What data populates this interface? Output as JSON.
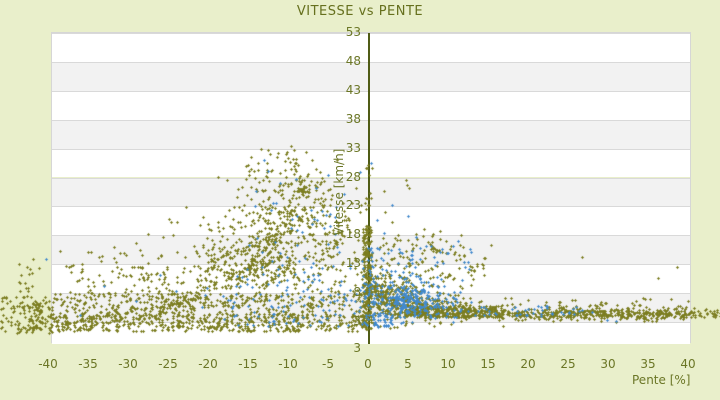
{
  "chart_data": {
    "type": "scatter",
    "title": "VITESSE vs PENTE",
    "xlabel": "Pente [%]",
    "ylabel": "Vitesse [km/h]",
    "xlim": [
      -40,
      40
    ],
    "ylim": [
      3,
      53
    ],
    "xticks": [
      -40,
      -35,
      -30,
      -25,
      -20,
      -15,
      -10,
      -5,
      0,
      5,
      10,
      15,
      20,
      25,
      30,
      35,
      40
    ],
    "yticks": [
      53,
      48,
      43,
      38,
      33,
      28,
      23,
      18,
      13,
      8,
      3
    ],
    "axis_floor_label": "3",
    "grid": "horizontal alternating bands, y-axis drawn at x=0, points not clipped to plot box",
    "legend": null,
    "colors": {
      "background": "#e9efcb",
      "band_light": "#ffffff",
      "band_dark": "#f2f2f2",
      "gridline": "#d9d9d9",
      "axis_line": "#505c16",
      "tick_text": "#6b7626",
      "title_text": "#66701e"
    },
    "series": [
      {
        "name": "vitesse-vs-pente-olive",
        "color": "#7b7d20",
        "marker": "plus-3px",
        "clusters": [
          {
            "t": "box",
            "x": [
              -46,
              -40.3
            ],
            "y": [
              0.8,
              7.5
            ],
            "n": 80
          },
          {
            "t": "box",
            "x": [
              -45,
              -41
            ],
            "y": [
              7.5,
              14.5
            ],
            "n": 16
          },
          {
            "t": "box",
            "x": [
              -42.5,
              -39.5
            ],
            "y": [
              0.8,
              6.5
            ],
            "n": 70
          },
          {
            "t": "box",
            "x": [
              -40,
              -0.5
            ],
            "y": [
              1.2,
              4.3
            ],
            "n": 600
          },
          {
            "t": "box",
            "x": [
              -40,
              -1
            ],
            "y": [
              4.3,
              8
            ],
            "n": 360
          },
          {
            "t": "gauss",
            "cx": -14,
            "cy": 11,
            "sx": 7.5,
            "sy": 2.4,
            "n": 240
          },
          {
            "t": "gauss",
            "cx": -12,
            "cy": 16,
            "sx": 6,
            "sy": 2.8,
            "n": 190
          },
          {
            "t": "gauss",
            "cx": -10.5,
            "cy": 21,
            "sx": 5,
            "sy": 2.4,
            "n": 130
          },
          {
            "t": "gauss",
            "cx": -9.5,
            "cy": 25.5,
            "sx": 4,
            "sy": 2,
            "n": 85
          },
          {
            "t": "gauss",
            "cx": -10,
            "cy": 29,
            "sx": 3,
            "sy": 1.4,
            "n": 36
          },
          {
            "t": "gauss",
            "cx": -10.5,
            "cy": 32,
            "sx": 2,
            "sy": 1,
            "n": 12
          },
          {
            "t": "path",
            "pts": [
              [
                -27,
                5.5
              ],
              [
                -21,
                8
              ],
              [
                -16,
                11.5
              ],
              [
                -12.5,
                16
              ],
              [
                -10,
                21
              ],
              [
                -8.5,
                25.5
              ],
              [
                -8,
                27.5
              ]
            ],
            "n": 110,
            "j": 0.45
          },
          {
            "t": "path",
            "pts": [
              [
                -20,
                13
              ],
              [
                -15.5,
                15.5
              ],
              [
                -12,
                17.5
              ],
              [
                -9,
                18.5
              ]
            ],
            "n": 50,
            "j": 0.4
          },
          {
            "t": "path",
            "pts": [
              [
                -18,
                10.5
              ],
              [
                -14,
                12.5
              ],
              [
                -11,
                14
              ]
            ],
            "n": 36,
            "j": 0.35
          },
          {
            "t": "path",
            "pts": [
              [
                -36,
                3.5
              ],
              [
                -28,
                5
              ],
              [
                -22,
                6.5
              ]
            ],
            "n": 55,
            "j": 0.4
          },
          {
            "t": "path",
            "pts": [
              [
                -13.5,
                8.9
              ],
              [
                -9.7,
                12.2
              ]
            ],
            "n": 22,
            "j": 0.3
          },
          {
            "t": "path",
            "pts": [
              [
                -5.5,
                14
              ],
              [
                -3.5,
                18
              ],
              [
                -2.8,
                21
              ]
            ],
            "n": 26,
            "j": 0.3
          },
          {
            "t": "box",
            "x": [
              -0.7,
              0.4
            ],
            "y": [
              1.5,
              19
            ],
            "n": 240
          },
          {
            "t": "box",
            "x": [
              -0.4,
              0.4
            ],
            "y": [
              19,
              30
            ],
            "n": 16
          },
          {
            "t": "gauss",
            "cx": 1.5,
            "cy": 7.5,
            "sx": 1.2,
            "sy": 2.2,
            "n": 140
          },
          {
            "t": "gauss",
            "cx": 4,
            "cy": 6,
            "sx": 2,
            "sy": 1.6,
            "n": 190
          },
          {
            "t": "gauss",
            "cx": 8,
            "cy": 5,
            "sx": 3,
            "sy": 1.1,
            "n": 220
          },
          {
            "t": "box",
            "x": [
              6,
              16
            ],
            "y": [
              3.6,
              5.6
            ],
            "n": 240
          },
          {
            "t": "hband",
            "x": [
              15,
              40.4
            ],
            "y": 4.3,
            "sy": 0.55,
            "n": 480
          },
          {
            "t": "hband",
            "x": [
              40.4,
              44
            ],
            "y": 4.4,
            "sy": 0.5,
            "n": 26
          },
          {
            "t": "box",
            "x": [
              0.5,
              15
            ],
            "y": [
              8,
              14
            ],
            "n": 85
          },
          {
            "t": "box",
            "x": [
              1,
              12
            ],
            "y": [
              14,
              18
            ],
            "n": 38
          },
          {
            "t": "path",
            "pts": [
              [
                7.5,
                16.6
              ],
              [
                8.6,
                15
              ]
            ],
            "n": 14,
            "j": 0.2
          },
          {
            "t": "box",
            "x": [
              16,
              40
            ],
            "y": [
              5.5,
              7
            ],
            "n": 28
          },
          {
            "t": "box",
            "x": [
              -38,
              -25
            ],
            "y": [
              8,
              13
            ],
            "n": 55
          },
          {
            "t": "box",
            "x": [
              -36,
              -28
            ],
            "y": [
              13,
              16
            ],
            "n": 12
          },
          {
            "t": "pts",
            "pts": [
              [
                4.8,
                27.4
              ],
              [
                4.9,
                26.6
              ],
              [
                5.1,
                26
              ],
              [
                2.1,
                21.9
              ],
              [
                5.5,
                16.4
              ],
              [
                15.4,
                16.2
              ],
              [
                7,
                19
              ],
              [
                3,
                20.2
              ],
              [
                9,
                18.5
              ],
              [
                12,
                14.5
              ],
              [
                26.8,
                14
              ],
              [
                38.6,
                12.4
              ],
              [
                36.3,
                10.5
              ],
              [
                36.9,
                5.4
              ],
              [
                33,
                6.2
              ],
              [
                29,
                6
              ],
              [
                24,
                6.3
              ],
              [
                20,
                6.6
              ],
              [
                41.5,
                4.3
              ],
              [
                42.7,
                4.8
              ],
              [
                43.5,
                4.1
              ],
              [
                31,
                2.9
              ],
              [
                35,
                3.2
              ],
              [
                -29,
                16.5
              ],
              [
                -31,
                14.8
              ],
              [
                -27.5,
                18
              ],
              [
                -2,
                23.5
              ],
              [
                -1.5,
                26
              ],
              [
                0.5,
                29.5
              ]
            ]
          }
        ]
      },
      {
        "name": "vitesse-vs-pente-blue",
        "color": "#4189cc",
        "marker": "plus-3px",
        "clusters": [
          {
            "t": "box",
            "x": [
              -21,
              -1
            ],
            "y": [
              2,
              9
            ],
            "n": 85
          },
          {
            "t": "box",
            "x": [
              -17,
              -2
            ],
            "y": [
              9,
              16
            ],
            "n": 42
          },
          {
            "t": "box",
            "x": [
              -15,
              -4
            ],
            "y": [
              16,
              24
            ],
            "n": 26
          },
          {
            "t": "box",
            "x": [
              -0.8,
              0.8
            ],
            "y": [
              2,
              16
            ],
            "n": 50
          },
          {
            "t": "gauss",
            "cx": 4.5,
            "cy": 7,
            "sx": 2.2,
            "sy": 1.8,
            "n": 220
          },
          {
            "t": "gauss",
            "cx": 8,
            "cy": 6,
            "sx": 2.5,
            "sy": 1.3,
            "n": 85
          },
          {
            "t": "box",
            "x": [
              1,
              13
            ],
            "y": [
              10,
              16
            ],
            "n": 50
          },
          {
            "t": "box",
            "x": [
              13,
              27
            ],
            "y": [
              3.8,
              5.6
            ],
            "n": 40
          },
          {
            "t": "box",
            "x": [
              0.5,
              3
            ],
            "y": [
              2,
              4.5
            ],
            "n": 36
          },
          {
            "t": "pts",
            "pts": [
              [
                -13,
                30.8
              ],
              [
                -12.5,
                29
              ],
              [
                -9,
                27.5
              ],
              [
                -6.5,
                26
              ],
              [
                -5,
                28.3
              ],
              [
                -1,
                28.8
              ],
              [
                -3,
                25
              ],
              [
                -14,
                25.5
              ],
              [
                -11,
                26.8
              ],
              [
                -40.2,
                13.7
              ],
              [
                -33,
                9
              ],
              [
                -26,
                11
              ],
              [
                -29,
                6.5
              ],
              [
                -24,
                8.2
              ],
              [
                -36,
                4
              ],
              [
                0.4,
                30.3
              ],
              [
                1.1,
                20.5
              ],
              [
                11.2,
                16.9
              ],
              [
                3,
                23
              ],
              [
                5,
                21.2
              ],
              [
                2,
                18.2
              ],
              [
                6,
                17.5
              ],
              [
                9,
                15
              ],
              [
                29.9,
                3.2
              ],
              [
                31,
                3
              ],
              [
                28,
                4.6
              ]
            ]
          }
        ]
      }
    ]
  }
}
